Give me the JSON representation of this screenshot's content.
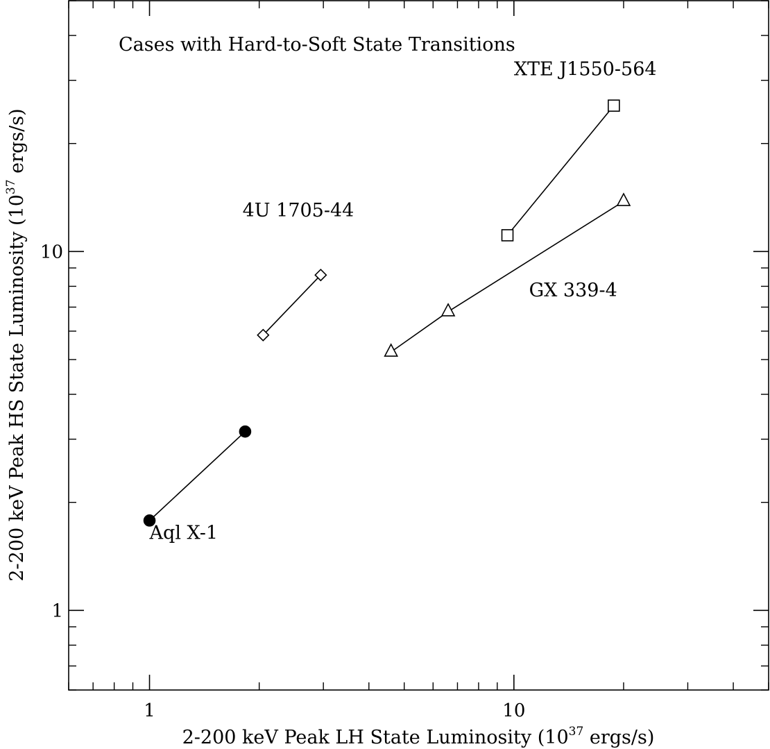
{
  "chart_data": {
    "type": "scatter",
    "title": "Cases with Hard-to-Soft State Transitions",
    "xlabel": {
      "prefix": "2-200 keV Peak LH State Luminosity (10",
      "exponent": "37",
      "suffix": " ergs/s)"
    },
    "ylabel": {
      "prefix": "2-200 keV Peak HS State Luminosity (10",
      "exponent": "37",
      "suffix": " ergs/s)"
    },
    "xscale": "log",
    "yscale": "log",
    "xlim": [
      0.6,
      50
    ],
    "ylim": [
      0.6,
      50
    ],
    "x_ticks": [
      {
        "value": 1,
        "label": "1"
      },
      {
        "value": 10,
        "label": "10"
      }
    ],
    "y_ticks": [
      {
        "value": 1,
        "label": "1"
      },
      {
        "value": 10,
        "label": "10"
      }
    ],
    "grid": false,
    "series": [
      {
        "name": "Aql X-1",
        "marker": "filled-circle",
        "x": [
          1.0,
          1.83
        ],
        "y": [
          1.78,
          3.15
        ],
        "label_at": [
          1.0,
          1.58
        ]
      },
      {
        "name": "4U 1705-44",
        "marker": "diamond",
        "x": [
          2.05,
          2.95
        ],
        "y": [
          5.85,
          8.6
        ],
        "label_at": [
          1.8,
          12.5
        ]
      },
      {
        "name": "GX 339-4",
        "marker": "triangle",
        "x": [
          4.6,
          6.6,
          20.0
        ],
        "y": [
          5.25,
          6.8,
          13.8
        ],
        "label_at": [
          11.0,
          7.5
        ]
      },
      {
        "name": "XTE J1550-564",
        "marker": "square",
        "x": [
          9.6,
          18.8
        ],
        "y": [
          11.1,
          25.5
        ],
        "label_at": [
          10.0,
          31.0
        ]
      }
    ]
  }
}
